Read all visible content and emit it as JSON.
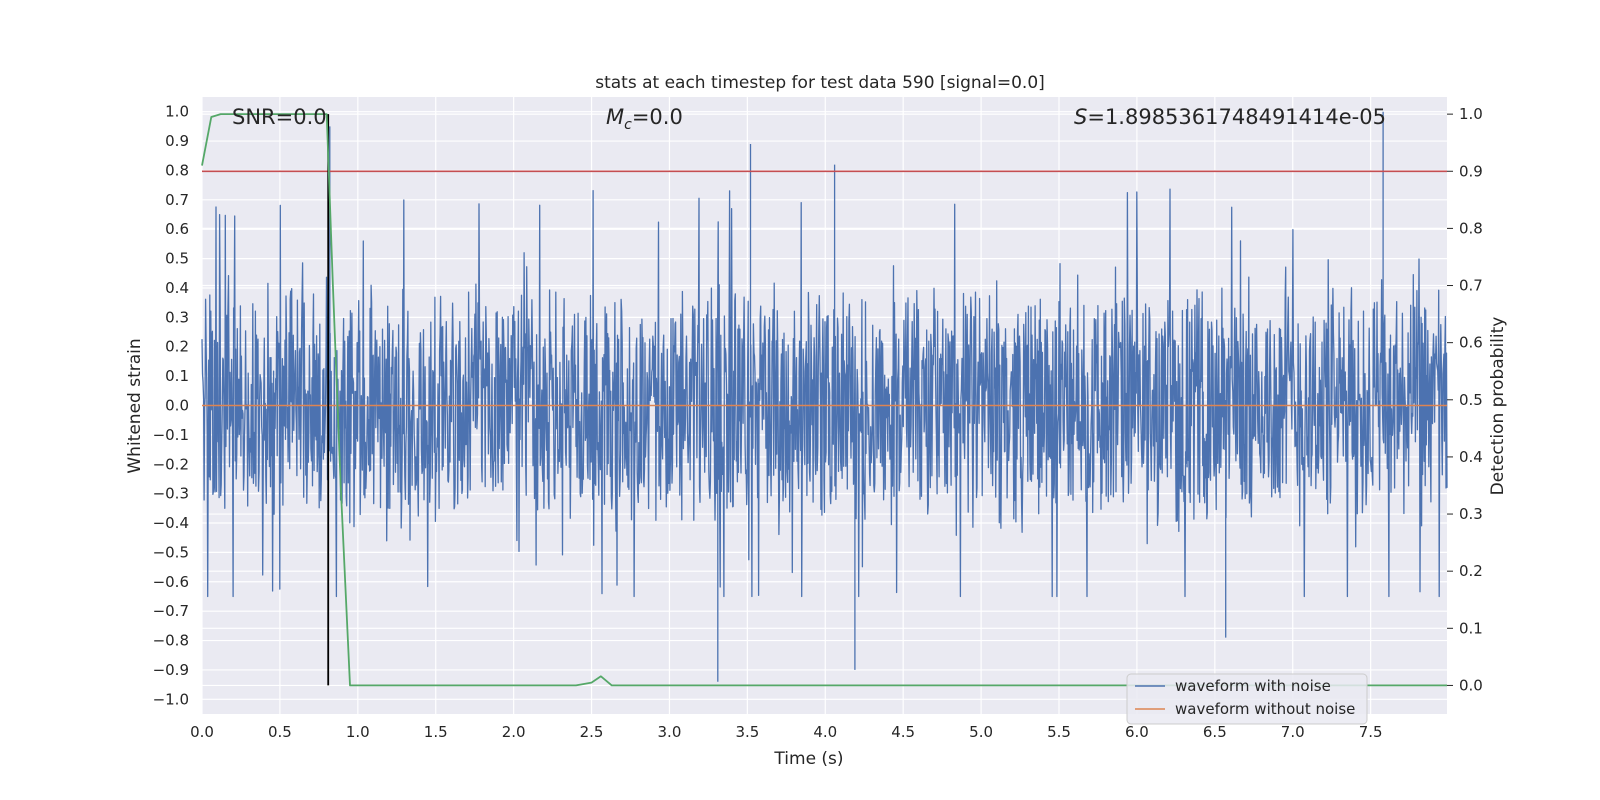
{
  "chart_data": {
    "type": "line",
    "title": "stats at each timestep for test data 590 [signal=0.0]",
    "xlabel": "Time (s)",
    "ylabel": "Whitened strain",
    "y2label": "Detection probability",
    "xlim": [
      0.0,
      7.99
    ],
    "ylim": [
      -1.05,
      1.05
    ],
    "y2lim": [
      -0.05,
      1.03
    ],
    "x_ticks": [
      "0.0",
      "0.5",
      "1.0",
      "1.5",
      "2.0",
      "2.5",
      "3.0",
      "3.5",
      "4.0",
      "4.5",
      "5.0",
      "5.5",
      "6.0",
      "6.5",
      "7.0",
      "7.5"
    ],
    "y_ticks": [
      "1.0",
      "0.9",
      "0.8",
      "0.7",
      "0.6",
      "0.5",
      "0.4",
      "0.3",
      "0.2",
      "0.1",
      "0.0",
      "−0.1",
      "−0.2",
      "−0.3",
      "−0.4",
      "−0.5",
      "−0.6",
      "−0.7",
      "−0.8",
      "−0.9",
      "−1.0"
    ],
    "y2_ticks": [
      "1.0",
      "0.9",
      "0.8",
      "0.7",
      "0.6",
      "0.5",
      "0.4",
      "0.3",
      "0.2",
      "0.1",
      "0.0"
    ],
    "annotations": {
      "snr": "SNR=0.0",
      "mc_symbol": "M",
      "mc_subscript": "c",
      "mc_value": "=0.0",
      "s_symbol": "S",
      "s_value": "=1.8985361748491414e-05"
    },
    "threshold_probability": 0.9,
    "marker_time": 0.81,
    "noise_envelope": {
      "typical_upper": 0.4,
      "typical_lower": -0.4,
      "peaks": [
        {
          "x": 0.82,
          "y": 0.95
        },
        {
          "x": 3.52,
          "y": 0.89
        },
        {
          "x": 4.06,
          "y": 0.82
        },
        {
          "x": 7.58,
          "y": 1.0
        },
        {
          "x": 3.31,
          "y": -0.94
        },
        {
          "x": 4.19,
          "y": -0.9
        },
        {
          "x": 0.81,
          "y": -0.83
        },
        {
          "x": 6.57,
          "y": -0.79
        }
      ]
    },
    "series": [
      {
        "name": "waveform with noise",
        "color": "#4c72b0",
        "axis": "left",
        "description_type": "dense noise"
      },
      {
        "name": "waveform without noise",
        "color": "#dd8452",
        "axis": "left",
        "x": [
          0.0,
          7.99
        ],
        "y": [
          0.0,
          0.0
        ]
      },
      {
        "name": "detection probability",
        "color": "#55a868",
        "axis": "right",
        "show_in_legend": false,
        "x": [
          0.0,
          0.06,
          0.12,
          0.3,
          0.5,
          0.7,
          0.8,
          0.84,
          0.89,
          0.95,
          1.2,
          2.0,
          2.2,
          2.4,
          2.5,
          2.56,
          2.63,
          3.0,
          5.0,
          7.0,
          7.99
        ],
        "y": [
          0.91,
          0.995,
          1.0,
          1.0,
          1.0,
          1.0,
          1.0,
          0.7,
          0.35,
          0.0,
          0.0,
          0.0,
          0.0,
          0.0,
          0.005,
          0.016,
          0.0,
          0.0,
          0.0,
          0.0,
          0.0
        ]
      }
    ],
    "legend": {
      "position": "bottom-right",
      "entries": [
        "waveform with noise",
        "waveform without noise"
      ]
    },
    "colors": {
      "background": "#eaeaf2",
      "grid": "#ffffff",
      "threshold": "#c44e52",
      "marker": "#000000"
    }
  }
}
